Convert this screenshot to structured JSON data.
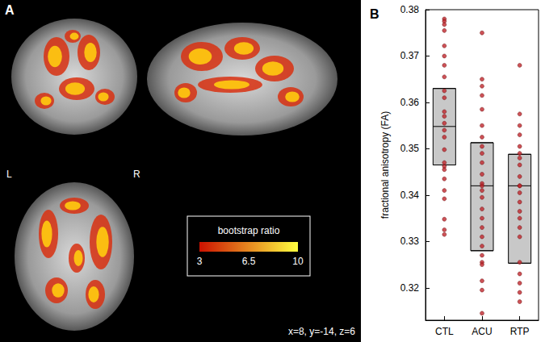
{
  "image_panel": {
    "label": "A",
    "orientation_labels": [
      "L",
      "R"
    ],
    "colorbar": {
      "title": "bootstrap ratio",
      "range": [
        3,
        10
      ],
      "ticks": [
        3,
        6.5,
        10
      ],
      "colors": [
        "#cc1100",
        "#ffff40"
      ]
    },
    "coordinates": "x=8, y=-14, z=6"
  },
  "chart_data": {
    "type": "box_scatter",
    "title": "B",
    "ylabel": "fractional anisotropy (FA)",
    "categories": [
      "CTL",
      "ACU",
      "RTP"
    ],
    "boxes": {
      "low": [
        0.3465,
        0.328,
        0.3253
      ],
      "median": [
        0.3548,
        0.342,
        0.342
      ],
      "high": [
        0.363,
        0.3513,
        0.3488
      ]
    },
    "points": [
      [
        0.378,
        0.3775,
        0.3768,
        0.3755,
        0.3722,
        0.37,
        0.368,
        0.3655,
        0.3625,
        0.361,
        0.358,
        0.357,
        0.3555,
        0.354,
        0.3525,
        0.3498,
        0.347,
        0.3462,
        0.3455,
        0.3435,
        0.341,
        0.3392,
        0.3348,
        0.3325,
        0.3315
      ],
      [
        0.375,
        0.365,
        0.3635,
        0.3615,
        0.3585,
        0.355,
        0.3525,
        0.3505,
        0.349,
        0.347,
        0.3445,
        0.3425,
        0.342,
        0.341,
        0.3395,
        0.337,
        0.335,
        0.333,
        0.331,
        0.329,
        0.327,
        0.3255,
        0.325,
        0.3215,
        0.3195,
        0.3145
      ],
      [
        0.368,
        0.3575,
        0.355,
        0.353,
        0.3505,
        0.349,
        0.348,
        0.3465,
        0.344,
        0.342,
        0.342,
        0.3405,
        0.3385,
        0.3365,
        0.335,
        0.333,
        0.331,
        0.3255,
        0.323,
        0.321,
        0.319,
        0.317
      ]
    ],
    "color": "#c0272d",
    "box_color": "#c8c8c8",
    "ylim": [
      0.313,
      0.38
    ],
    "yticks": [
      0.32,
      0.33,
      0.34,
      0.35,
      0.36,
      0.37,
      0.38
    ]
  }
}
